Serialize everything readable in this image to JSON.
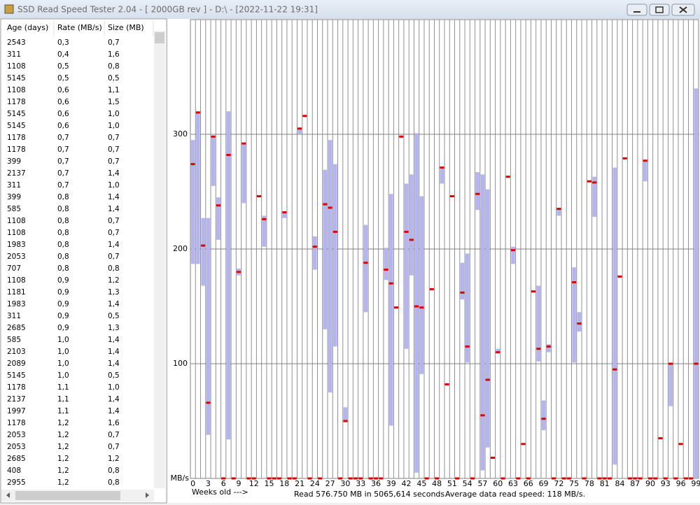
{
  "window": {
    "title": "SSD Read Speed Tester 2.04 - [  2000GB rev ] - D:\\ - [2022-11-22 19:31]"
  },
  "table": {
    "headers": [
      "Age (days)",
      "Rate (MB/s)",
      "Size (MB)"
    ],
    "rows": [
      [
        "2543",
        "0,3",
        "0,7"
      ],
      [
        "311",
        "0,4",
        "1,6"
      ],
      [
        "1108",
        "0,5",
        "0,8"
      ],
      [
        "5145",
        "0,5",
        "0,5"
      ],
      [
        "1108",
        "0,6",
        "1,1"
      ],
      [
        "1178",
        "0,6",
        "1,5"
      ],
      [
        "5145",
        "0,6",
        "1,0"
      ],
      [
        "5145",
        "0,6",
        "1,0"
      ],
      [
        "1178",
        "0,7",
        "0,7"
      ],
      [
        "1178",
        "0,7",
        "0,7"
      ],
      [
        "399",
        "0,7",
        "0,7"
      ],
      [
        "2137",
        "0,7",
        "1,4"
      ],
      [
        "311",
        "0,7",
        "1,0"
      ],
      [
        "399",
        "0,8",
        "1,4"
      ],
      [
        "585",
        "0,8",
        "1,4"
      ],
      [
        "1108",
        "0,8",
        "0,7"
      ],
      [
        "1108",
        "0,8",
        "0,7"
      ],
      [
        "1983",
        "0,8",
        "1,4"
      ],
      [
        "2053",
        "0,8",
        "0,7"
      ],
      [
        "707",
        "0,8",
        "0,8"
      ],
      [
        "1108",
        "0,9",
        "1,2"
      ],
      [
        "1181",
        "0,9",
        "1,3"
      ],
      [
        "1983",
        "0,9",
        "1,4"
      ],
      [
        "311",
        "0,9",
        "0,5"
      ],
      [
        "2685",
        "0,9",
        "1,3"
      ],
      [
        "585",
        "1,0",
        "1,4"
      ],
      [
        "2103",
        "1,0",
        "1,4"
      ],
      [
        "2089",
        "1,0",
        "1,4"
      ],
      [
        "5145",
        "1,0",
        "0,5"
      ],
      [
        "1178",
        "1,1",
        "1,0"
      ],
      [
        "2137",
        "1,1",
        "1,4"
      ],
      [
        "1997",
        "1,1",
        "1,4"
      ],
      [
        "1178",
        "1,2",
        "1,6"
      ],
      [
        "2053",
        "1,2",
        "0,7"
      ],
      [
        "2053",
        "1,2",
        "0,7"
      ],
      [
        "2685",
        "1,2",
        "1,2"
      ],
      [
        "408",
        "1,2",
        "0,8"
      ],
      [
        "2955",
        "1,2",
        "0,8"
      ]
    ]
  },
  "status": {
    "read": "Read 576.750 MB in 5065,614 seconds.",
    "average": "Average data read speed: 118 MB/s."
  },
  "chart_data": {
    "type": "range",
    "xlabel": "Weeks old --->",
    "ylabel": "MB/s",
    "x": [
      0,
      1,
      2,
      3,
      4,
      5,
      6,
      7,
      8,
      9,
      10,
      11,
      12,
      13,
      14,
      15,
      16,
      17,
      18,
      19,
      20,
      21,
      22,
      23,
      24,
      25,
      26,
      27,
      28,
      29,
      30,
      31,
      32,
      33,
      34,
      35,
      36,
      37,
      38,
      39,
      40,
      41,
      42,
      43,
      44,
      45,
      46,
      47,
      48,
      49,
      50,
      51,
      52,
      53,
      54,
      55,
      56,
      57,
      58,
      59,
      60,
      61,
      62,
      63,
      64,
      65,
      66,
      67,
      68,
      69,
      70,
      71,
      72,
      73,
      74,
      75,
      76,
      77,
      78,
      79,
      80,
      81,
      82,
      83,
      84,
      85,
      86,
      87,
      88,
      89,
      90,
      91,
      92,
      93,
      94,
      95,
      96,
      97,
      98,
      99
    ],
    "min": [
      187,
      187,
      168,
      38,
      255,
      208,
      null,
      34,
      null,
      177,
      240,
      null,
      null,
      null,
      202,
      null,
      null,
      null,
      227,
      null,
      null,
      300,
      null,
      null,
      182,
      null,
      130,
      75,
      115,
      null,
      50,
      null,
      null,
      null,
      145,
      null,
      null,
      null,
      173,
      46,
      null,
      null,
      113,
      177,
      5,
      91,
      null,
      null,
      null,
      257,
      null,
      null,
      null,
      156,
      101,
      null,
      234,
      7,
      27,
      null,
      109,
      null,
      null,
      187,
      null,
      null,
      null,
      null,
      102,
      42,
      110,
      null,
      229,
      null,
      null,
      101,
      128,
      null,
      null,
      228,
      null,
      null,
      null,
      12,
      null,
      null,
      null,
      null,
      null,
      259,
      null,
      null,
      null,
      null,
      63,
      null,
      null,
      null,
      null,
      0
    ],
    "max": [
      295,
      320,
      227,
      227,
      298,
      245,
      null,
      320,
      null,
      183,
      292,
      null,
      null,
      null,
      229,
      null,
      null,
      null,
      232,
      null,
      null,
      305,
      null,
      null,
      211,
      null,
      269,
      295,
      274,
      null,
      62,
      null,
      null,
      null,
      221,
      null,
      null,
      null,
      201,
      248,
      null,
      null,
      257,
      265,
      301,
      246,
      null,
      null,
      null,
      271,
      null,
      null,
      null,
      188,
      196,
      null,
      267,
      265,
      252,
      null,
      113,
      null,
      null,
      202,
      null,
      null,
      null,
      null,
      168,
      68,
      117,
      null,
      235,
      null,
      null,
      184,
      145,
      null,
      null,
      263,
      null,
      null,
      null,
      271,
      null,
      null,
      null,
      null,
      null,
      277,
      null,
      null,
      null,
      null,
      100,
      null,
      null,
      null,
      null,
      340
    ],
    "values": [
      274,
      319,
      203,
      66,
      298,
      238,
      0,
      282,
      0,
      180,
      292,
      0,
      0,
      246,
      226,
      0,
      0,
      0,
      232,
      0,
      0,
      305,
      316,
      0,
      202,
      0,
      239,
      236,
      215,
      0,
      50,
      0,
      0,
      0,
      188,
      0,
      0,
      0,
      182,
      170,
      149,
      298,
      215,
      208,
      150,
      149,
      0,
      165,
      0,
      271,
      82,
      246,
      0,
      162,
      115,
      0,
      248,
      55,
      86,
      18,
      110,
      0,
      263,
      199,
      0,
      30,
      0,
      163,
      113,
      52,
      115,
      0,
      235,
      0,
      0,
      171,
      135,
      0,
      259,
      258,
      0,
      0,
      0,
      95,
      176,
      279,
      0,
      0,
      0,
      277,
      0,
      0,
      35,
      0,
      100,
      0,
      30,
      0,
      0,
      100
    ],
    "range_color": "#b4b4f0",
    "color": "#e00000",
    "xlim": [
      -0.5,
      99.5
    ],
    "xticks": [
      0,
      3,
      6,
      9,
      12,
      15,
      18,
      21,
      24,
      27,
      30,
      33,
      36,
      39,
      42,
      45,
      48,
      51,
      54,
      57,
      60,
      63,
      66,
      69,
      72,
      75,
      78,
      81,
      84,
      87,
      90,
      93,
      96,
      99
    ],
    "ylim": [
      0,
      400
    ],
    "yticks": [
      100,
      200,
      300
    ],
    "grid": true
  }
}
